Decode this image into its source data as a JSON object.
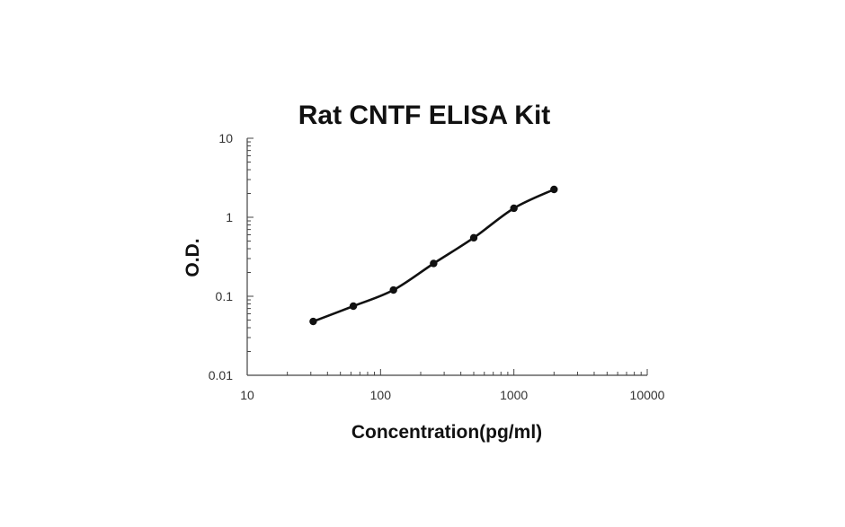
{
  "chart_data": {
    "type": "scatter",
    "title": "Rat CNTF ELISA Kit",
    "xlabel": "Concentration(pg/ml)",
    "ylabel": "O.D.",
    "x_scale": "log",
    "y_scale": "log",
    "xlim": [
      10,
      10000
    ],
    "ylim": [
      0.01,
      10
    ],
    "x_ticks": [
      "10",
      "100",
      "1000",
      "10000"
    ],
    "y_ticks": [
      "0.01",
      "0.1",
      "1",
      "10"
    ],
    "grid": false,
    "legend": "none",
    "series": [
      {
        "x": [
          31.25,
          62.5,
          125,
          250,
          500,
          1000,
          2000
        ],
        "y": [
          0.048,
          0.075,
          0.12,
          0.26,
          0.55,
          1.3,
          2.25
        ],
        "line": "smooth",
        "color": "#111111"
      }
    ]
  }
}
